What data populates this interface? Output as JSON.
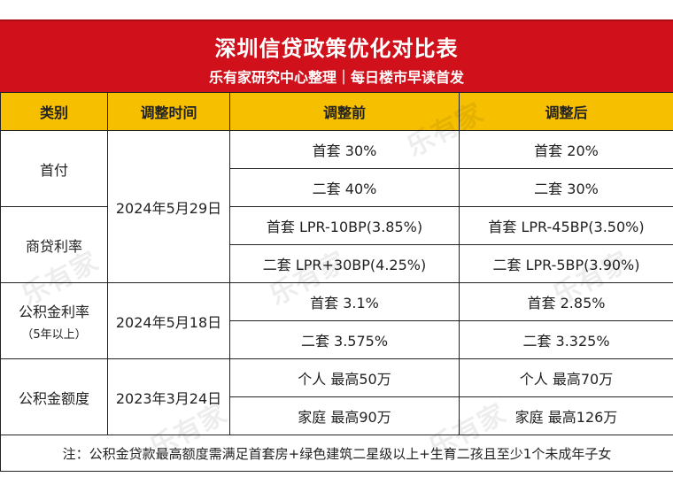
{
  "title": "深圳信贷政策优化对比表",
  "subtitle": "乐有家研究中心整理｜每日楼市早读首发",
  "headers": [
    "类别",
    "调整时间",
    "调整前",
    "调整后"
  ],
  "groups": [
    {
      "category": "首付",
      "rows": [
        {
          "before": "首套 30%",
          "after": "首套 20%"
        },
        {
          "before": "二套 40%",
          "after": "二套 30%"
        }
      ]
    },
    {
      "category": "商贷利率",
      "rows": [
        {
          "before": "首套 LPR-10BP(3.85%)",
          "after": "首套 LPR-45BP(3.50%)"
        },
        {
          "before": "二套 LPR+30BP(4.25%)",
          "after": "二套 LPR-5BP(3.90%)"
        }
      ]
    },
    {
      "category": "公积金利率",
      "category_note": "（5年以上）",
      "rows": [
        {
          "before": "首套 3.1%",
          "after": "首套 2.85%"
        },
        {
          "before": "二套 3.575%",
          "after": "二套 3.325%"
        }
      ]
    },
    {
      "category": "公积金额度",
      "rows": [
        {
          "before": "个人 最高50万",
          "after": "个人 最高70万"
        },
        {
          "before": "家庭 最高90万",
          "after": "家庭 最高126万"
        }
      ]
    }
  ],
  "dates": [
    "2024年5月29日",
    "2024年5月18日",
    "2023年3月24日"
  ],
  "note": "注：公积金贷款最高额度需满足首套房+绿色建筑二星级以上+生育二孩且至少1个未成年子女",
  "watermark": "乐有家"
}
